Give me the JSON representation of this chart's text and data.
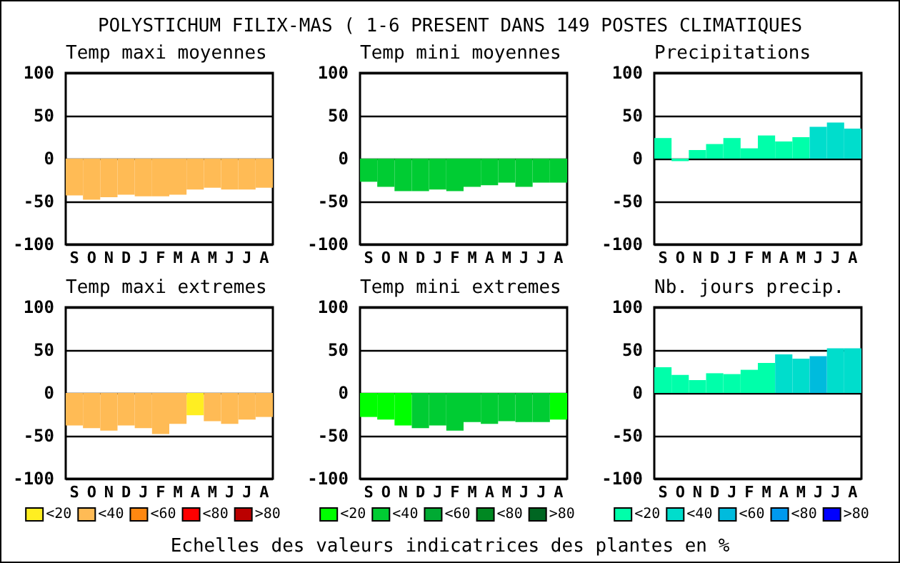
{
  "chart_data": [
    {
      "type": "bar",
      "title": "Temp maxi moyennes",
      "annotations": [
        "POLYSTICHUM FILIX-MAS ( 1-6 PRESENT DANS 149 POSTES CLIMATIQUES"
      ],
      "categories": [
        "S",
        "O",
        "N",
        "D",
        "J",
        "F",
        "M",
        "A",
        "M",
        "J",
        "J",
        "A"
      ],
      "values": [
        -43,
        -48,
        -45,
        -42,
        -44,
        -44,
        -42,
        -36,
        -34,
        -36,
        -36,
        -34
      ],
      "colors": [
        "#ffbb55",
        "#ffbb55",
        "#ffbb55",
        "#ffbb55",
        "#ffbb55",
        "#ffbb55",
        "#ffbb55",
        "#ffbb55",
        "#ffbb55",
        "#ffbb55",
        "#ffbb55",
        "#ffbb55"
      ],
      "ylim": [
        -100,
        100
      ],
      "yticks": [
        -100,
        -50,
        0,
        50,
        100
      ],
      "grid": "y"
    },
    {
      "type": "bar",
      "title": "Temp mini moyennes",
      "categories": [
        "S",
        "O",
        "N",
        "D",
        "J",
        "F",
        "M",
        "A",
        "M",
        "J",
        "J",
        "A"
      ],
      "values": [
        -27,
        -33,
        -38,
        -38,
        -36,
        -38,
        -33,
        -31,
        -28,
        -33,
        -28,
        -28
      ],
      "colors": [
        "#00cc33",
        "#00cc33",
        "#00cc33",
        "#00cc33",
        "#00cc33",
        "#00cc33",
        "#00cc33",
        "#00cc33",
        "#00cc33",
        "#00cc33",
        "#00cc33",
        "#00cc33"
      ],
      "ylim": [
        -100,
        100
      ],
      "yticks": [
        -100,
        -50,
        0,
        50,
        100
      ],
      "grid": "y"
    },
    {
      "type": "bar",
      "title": "Precipitations",
      "categories": [
        "S",
        "O",
        "N",
        "D",
        "J",
        "F",
        "M",
        "A",
        "M",
        "J",
        "J",
        "A"
      ],
      "values": [
        24,
        -3,
        10,
        17,
        24,
        12,
        27,
        20,
        25,
        37,
        42,
        35
      ],
      "colors": [
        "#00ffaa",
        "#00ffaa",
        "#00ffaa",
        "#00ffaa",
        "#00ffaa",
        "#00ffaa",
        "#00ffaa",
        "#00ffaa",
        "#00ffaa",
        "#00ddcc",
        "#00ddcc",
        "#00ddcc"
      ],
      "ylim": [
        -100,
        100
      ],
      "yticks": [
        -100,
        -50,
        0,
        50,
        100
      ],
      "grid": "y"
    },
    {
      "type": "bar",
      "title": "Temp maxi extremes",
      "categories": [
        "S",
        "O",
        "N",
        "D",
        "J",
        "F",
        "M",
        "A",
        "M",
        "J",
        "J",
        "A"
      ],
      "stacked": true,
      "legend": "bottom",
      "series": [
        {
          "name": "<20",
          "color": "#ffee22",
          "values": [
            null,
            null,
            null,
            null,
            null,
            null,
            null,
            -26,
            null,
            null,
            null,
            null
          ]
        },
        {
          "name": "<40",
          "color": "#ffbb55",
          "values": [
            -38,
            -41,
            -44,
            -38,
            -41,
            -48,
            -36,
            null,
            -33,
            -36,
            -31,
            -28
          ]
        },
        {
          "name": "<60",
          "color": "#ff8811",
          "values": [
            null,
            null,
            null,
            null,
            null,
            null,
            null,
            null,
            null,
            null,
            null,
            null
          ]
        },
        {
          "name": "<80",
          "color": "#ff0000",
          "values": [
            null,
            null,
            null,
            null,
            null,
            null,
            null,
            null,
            null,
            null,
            null,
            null
          ]
        },
        {
          "name": ">80",
          "color": "#bb0000",
          "values": [
            null,
            null,
            null,
            null,
            null,
            null,
            null,
            null,
            null,
            null,
            null,
            null
          ]
        }
      ],
      "ylim": [
        -100,
        100
      ],
      "yticks": [
        -100,
        -50,
        0,
        50,
        100
      ],
      "grid": "y"
    },
    {
      "type": "bar",
      "title": "Temp mini extremes",
      "annotations": [
        "Echelles des valeurs indicatrices des plantes en %"
      ],
      "categories": [
        "S",
        "O",
        "N",
        "D",
        "J",
        "F",
        "M",
        "A",
        "M",
        "J",
        "J",
        "A"
      ],
      "stacked": true,
      "legend": "bottom",
      "series": [
        {
          "name": "<20",
          "color": "#00ff00",
          "values": [
            -28,
            -31,
            -38,
            null,
            null,
            null,
            null,
            null,
            null,
            null,
            null,
            -31
          ]
        },
        {
          "name": "<40",
          "color": "#00cc33",
          "values": [
            null,
            null,
            null,
            -41,
            -38,
            -44,
            -34,
            -36,
            -33,
            -34,
            -34,
            null
          ]
        },
        {
          "name": "<60",
          "color": "#00aa33",
          "values": [
            null,
            null,
            null,
            null,
            null,
            null,
            null,
            null,
            null,
            null,
            null,
            null
          ]
        },
        {
          "name": "<80",
          "color": "#008822",
          "values": [
            null,
            null,
            null,
            null,
            null,
            null,
            null,
            null,
            null,
            null,
            null,
            null
          ]
        },
        {
          "name": ">80",
          "color": "#006622",
          "values": [
            null,
            null,
            null,
            null,
            null,
            null,
            null,
            null,
            null,
            null,
            null,
            null
          ]
        }
      ],
      "ylim": [
        -100,
        100
      ],
      "yticks": [
        -100,
        -50,
        0,
        50,
        100
      ],
      "grid": "y"
    },
    {
      "type": "bar",
      "title": "Nb. jours precip.",
      "categories": [
        "S",
        "O",
        "N",
        "D",
        "J",
        "F",
        "M",
        "A",
        "M",
        "J",
        "J",
        "A"
      ],
      "stacked": true,
      "legend": "bottom",
      "series": [
        {
          "name": "<20",
          "color": "#00ffaa",
          "values": [
            30,
            21,
            15,
            23,
            22,
            27,
            35,
            null,
            null,
            null,
            null,
            null
          ]
        },
        {
          "name": "<40",
          "color": "#00ddcc",
          "values": [
            null,
            null,
            null,
            null,
            null,
            null,
            null,
            45,
            40,
            null,
            52,
            52
          ]
        },
        {
          "name": "<60",
          "color": "#00bbdd",
          "values": [
            null,
            null,
            null,
            null,
            null,
            null,
            null,
            null,
            null,
            43,
            null,
            null
          ]
        },
        {
          "name": "<80",
          "color": "#0099ee",
          "values": [
            null,
            null,
            null,
            null,
            null,
            null,
            null,
            null,
            null,
            null,
            null,
            null
          ]
        },
        {
          "name": ">80",
          "color": "#0000ff",
          "values": [
            null,
            null,
            null,
            null,
            null,
            null,
            null,
            null,
            null,
            null,
            null,
            null
          ]
        }
      ],
      "ylim": [
        -100,
        100
      ],
      "yticks": [
        -100,
        -50,
        0,
        50,
        100
      ],
      "grid": "y"
    }
  ]
}
